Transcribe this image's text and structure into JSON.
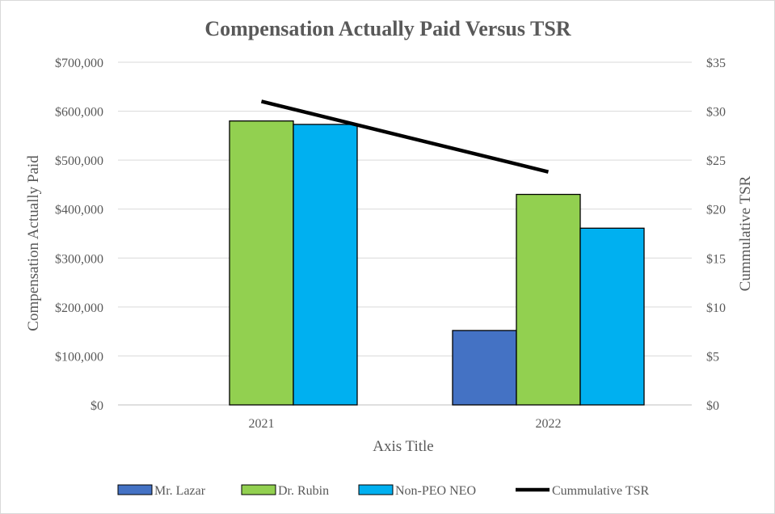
{
  "chart_data": {
    "type": "bar",
    "title": "Compensation Actually Paid Versus TSR",
    "xlabel": "Axis Title",
    "ylabel": "Compensation Actually Paid",
    "y2label": "Cummulative TSR",
    "categories": [
      "2021",
      "2022"
    ],
    "ylim": [
      0,
      700000
    ],
    "y2lim": [
      0,
      35
    ],
    "y_ticks": [
      "$0",
      "$100,000",
      "$200,000",
      "$300,000",
      "$400,000",
      "$500,000",
      "$600,000",
      "$700,000"
    ],
    "y2_ticks": [
      "$0",
      "$5",
      "$10",
      "$15",
      "$20",
      "$25",
      "$30",
      "$35"
    ],
    "grid": true,
    "legend_position": "bottom",
    "series": [
      {
        "name": "Mr. Lazar",
        "type": "bar",
        "axis": "left",
        "color": "#4472c4",
        "values": [
          null,
          152000
        ]
      },
      {
        "name": "Dr. Rubin",
        "type": "bar",
        "axis": "left",
        "color": "#92d050",
        "values": [
          580000,
          430000
        ]
      },
      {
        "name": "Non-PEO NEO",
        "type": "bar",
        "axis": "left",
        "color": "#00b0f0",
        "values": [
          573000,
          361000
        ]
      },
      {
        "name": "Cummulative TSR",
        "type": "line",
        "axis": "right",
        "color": "#000000",
        "values": [
          31.0,
          23.8
        ]
      }
    ]
  }
}
